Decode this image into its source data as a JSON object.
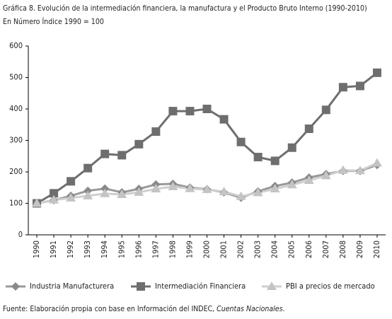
{
  "chart_data": {
    "type": "line",
    "title": "Gráfica 8. Evolución de la intermediación financiera, la manufactura y el Producto Bruto Interno (1990-2010)",
    "subtitle": "En Número Índice 1990 = 100",
    "categories": [
      "1990",
      "1991",
      "1992",
      "1993",
      "1994",
      "1995",
      "1996",
      "1997",
      "1998",
      "1999",
      "2000",
      "2001",
      "2002",
      "2003",
      "2004",
      "2005",
      "2006",
      "2007",
      "2008",
      "2009",
      "2010"
    ],
    "series": [
      {
        "name": "Industria Manufacturera",
        "color": "#999999",
        "marker_color": "#8a8a8a",
        "marker": "diamond",
        "values": [
          100,
          110,
          124,
          140,
          147,
          135,
          146,
          160,
          162,
          150,
          145,
          135,
          118,
          138,
          155,
          166,
          182,
          193,
          203,
          203,
          222
        ]
      },
      {
        "name": "Intermediación Financiera",
        "color": "#6e6e6e",
        "marker_color": "#6e6e6e",
        "marker": "square",
        "values": [
          100,
          132,
          170,
          212,
          257,
          253,
          288,
          328,
          393,
          393,
          400,
          367,
          295,
          247,
          235,
          277,
          337,
          397,
          469,
          473,
          515
        ]
      },
      {
        "name": "PBI a precios de mercado",
        "color": "#cfcfcf",
        "marker_color": "#c4c4c4",
        "marker": "triangle",
        "values": [
          100,
          111,
          117,
          124,
          131,
          128,
          135,
          146,
          153,
          147,
          144,
          137,
          122,
          134,
          146,
          159,
          173,
          188,
          205,
          204,
          228
        ]
      }
    ],
    "ylim": [
      0,
      600
    ],
    "yticks": [
      0,
      100,
      200,
      300,
      400,
      500,
      600
    ],
    "grid": false
  },
  "footer": {
    "prefix": "Fuente: Elaboración propia con base en Información del INDEC, ",
    "italic": "Cuentas Nacionales",
    "suffix": "."
  }
}
